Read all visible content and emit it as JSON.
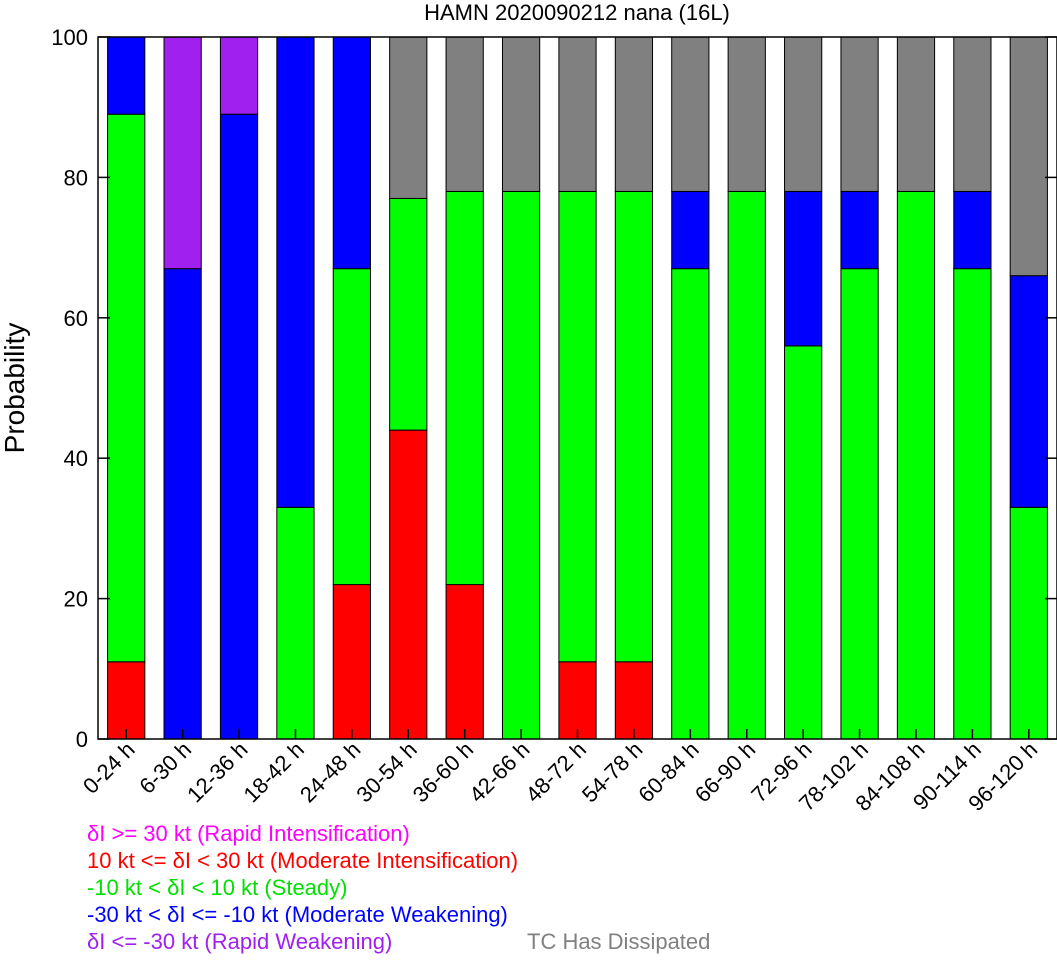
{
  "chart_data": {
    "type": "bar",
    "stacked": true,
    "title": "HAMN 2020090212 nana (16L)",
    "ylabel": "Probability",
    "ylim": [
      0,
      100
    ],
    "yticks": [
      "0",
      "20",
      "40",
      "60",
      "80",
      "100"
    ],
    "categories": [
      "0-24 h",
      "6-30 h",
      "12-36 h",
      "18-42 h",
      "24-48 h",
      "30-54 h",
      "36-60 h",
      "42-66 h",
      "48-72 h",
      "54-78 h",
      "60-84 h",
      "66-90 h",
      "72-96 h",
      "78-102 h",
      "84-108 h",
      "90-114 h",
      "96-120 h"
    ],
    "series": [
      {
        "key": "rapid_intensification",
        "color": "#ff00ff",
        "values": [
          0,
          0,
          0,
          0,
          0,
          0,
          0,
          0,
          0,
          0,
          0,
          0,
          0,
          0,
          0,
          0,
          0
        ]
      },
      {
        "key": "moderate_intensification",
        "color": "#ff0000",
        "values": [
          11,
          0,
          0,
          0,
          22,
          44,
          22,
          0,
          11,
          11,
          0,
          0,
          0,
          0,
          0,
          0,
          0
        ]
      },
      {
        "key": "steady",
        "color": "#00ff00",
        "values": [
          78,
          0,
          0,
          33,
          45,
          33,
          56,
          78,
          67,
          67,
          67,
          78,
          56,
          67,
          78,
          67,
          33
        ]
      },
      {
        "key": "moderate_weakening",
        "color": "#0000ff",
        "values": [
          11,
          67,
          89,
          67,
          33,
          0,
          0,
          0,
          0,
          0,
          11,
          0,
          22,
          11,
          0,
          11,
          33
        ]
      },
      {
        "key": "rapid_weakening",
        "color": "#a020f0",
        "values": [
          0,
          33,
          11,
          0,
          0,
          0,
          0,
          0,
          0,
          0,
          0,
          0,
          0,
          0,
          0,
          0,
          0
        ]
      },
      {
        "key": "dissipated",
        "color": "#808080",
        "values": [
          0,
          0,
          0,
          0,
          0,
          23,
          22,
          22,
          22,
          22,
          22,
          22,
          22,
          22,
          22,
          22,
          34
        ]
      }
    ],
    "grid": false
  },
  "legend": [
    {
      "text": "δI >= 30 kt (Rapid Intensification)",
      "color": "#ff00ff"
    },
    {
      "text": "10 kt <= δI < 30 kt (Moderate Intensification)",
      "color": "#ff0000"
    },
    {
      "text": "-10 kt < δI < 10 kt (Steady)",
      "color": "#00ff00"
    },
    {
      "text": "-30 kt < δI <= -10 kt (Moderate Weakening)",
      "color": "#0000ff"
    },
    {
      "text": "δI <= -30 kt (Rapid Weakening)",
      "color": "#a020f0"
    }
  ],
  "legend_dissipated": {
    "text": "TC Has Dissipated",
    "color": "#808080"
  }
}
